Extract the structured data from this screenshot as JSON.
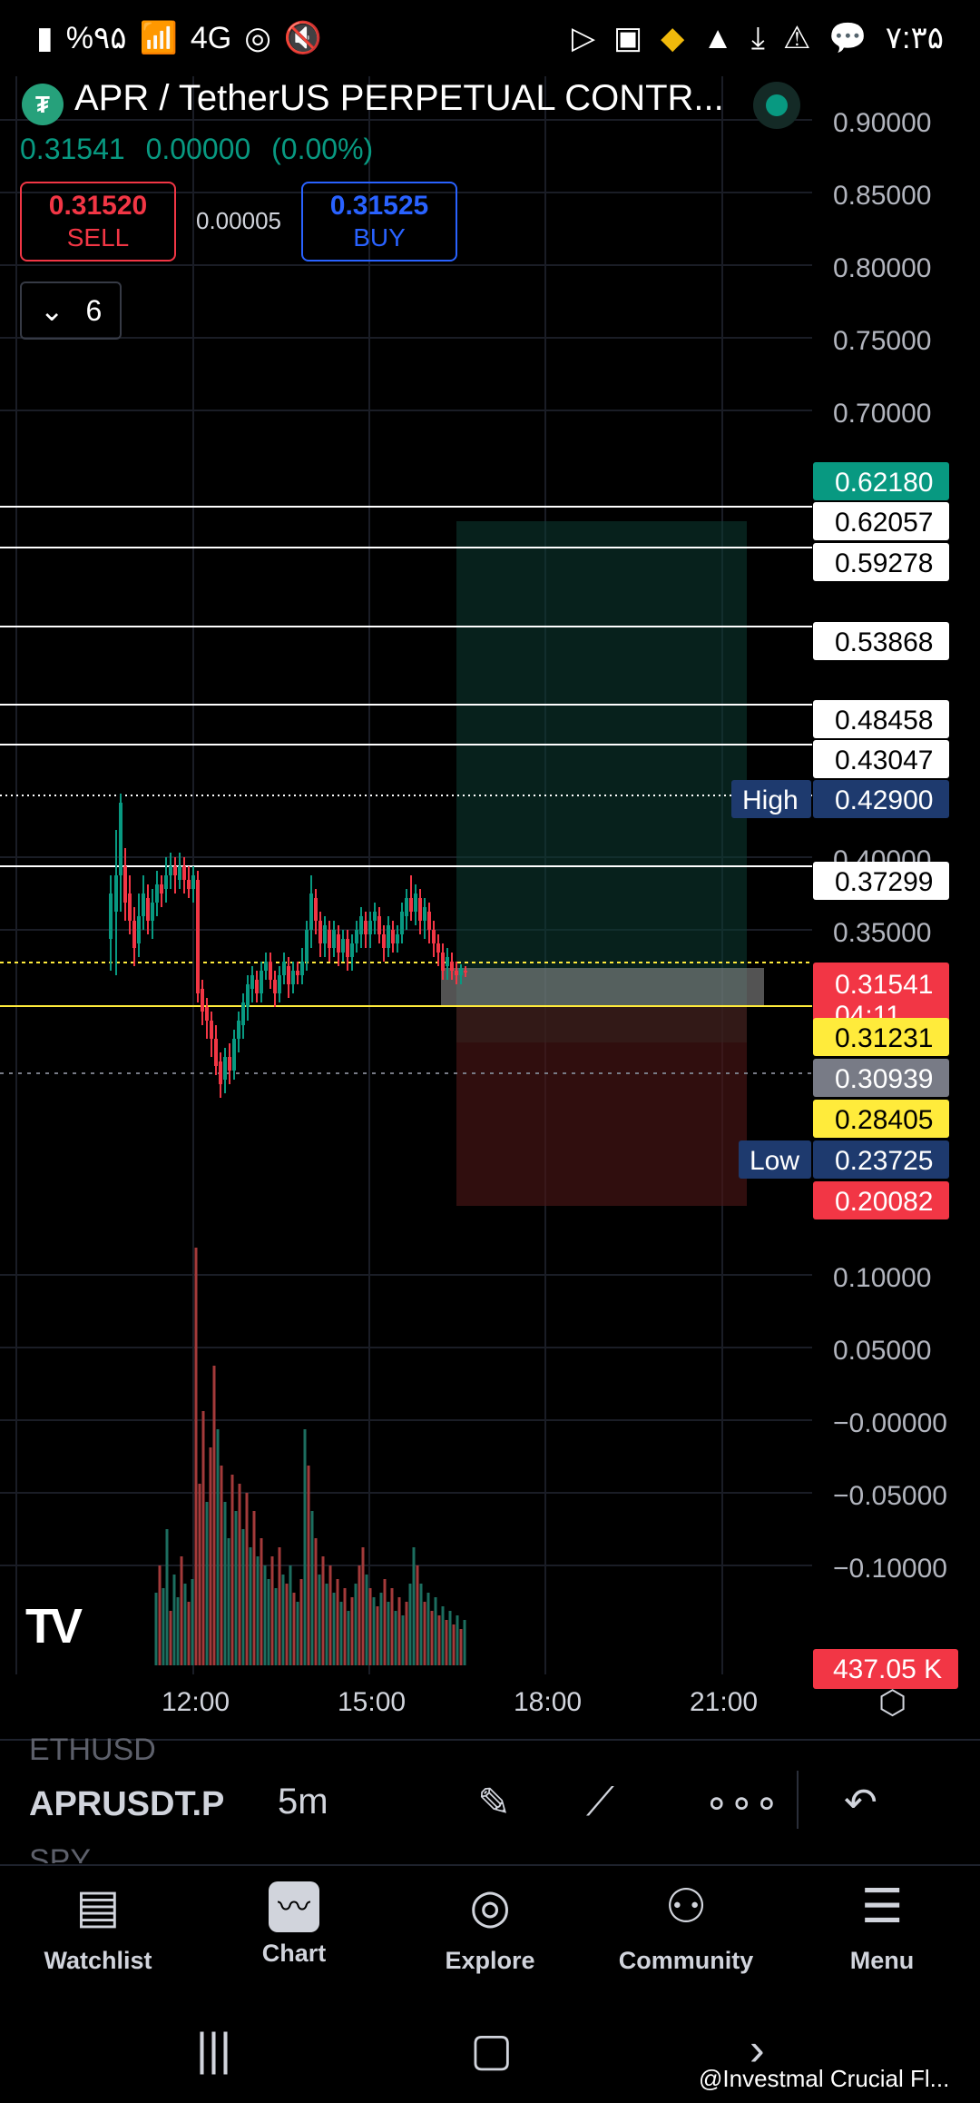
{
  "status_bar": {
    "battery": "%۹۵",
    "signal": "4G",
    "time": "۷:۳۵"
  },
  "header": {
    "title": "APR / TetherUS PERPETUAL CONTR...",
    "last_price": "0.31541",
    "change": "0.00000",
    "change_pct": "(0.00%)",
    "sell_price": "0.31520",
    "sell_label": "SELL",
    "spread": "0.00005",
    "buy_price": "0.31525",
    "buy_label": "BUY",
    "indicator_count": "6"
  },
  "colors": {
    "up": "#089981",
    "down": "#f23645",
    "accent": "#2962ff",
    "high_low": "#1e3a6e",
    "yellow": "#ffeb3b"
  },
  "chart_data": {
    "type": "candlestick",
    "symbol": "APRUSDT.P",
    "interval": "5m",
    "x_ticks": [
      "12:00",
      "15:00",
      "18:00",
      "21:00"
    ],
    "y_ticks": [
      "0.90000",
      "0.85000",
      "0.80000",
      "0.75000",
      "0.70000",
      "0.40000",
      "0.35000",
      "0.10000",
      "0.05000",
      "−0.00000",
      "−0.05000",
      "−0.10000"
    ],
    "price_labels": [
      {
        "value": "0.62180",
        "style": "green"
      },
      {
        "value": "0.62057",
        "style": "white"
      },
      {
        "value": "0.59278",
        "style": "white"
      },
      {
        "value": "0.53868",
        "style": "white"
      },
      {
        "value": "0.48458",
        "style": "white"
      },
      {
        "value": "0.43047",
        "style": "white"
      },
      {
        "value": "0.42900",
        "style": "navy",
        "tag": "High"
      },
      {
        "value": "0.37299",
        "style": "white"
      },
      {
        "value": "0.31541",
        "style": "red",
        "sub": "04:11"
      },
      {
        "value": "0.31231",
        "style": "yellow"
      },
      {
        "value": "0.30939",
        "style": "gray"
      },
      {
        "value": "0.28405",
        "style": "yellow"
      },
      {
        "value": "0.23725",
        "style": "navy",
        "tag": "Low"
      },
      {
        "value": "0.20082",
        "style": "red"
      }
    ],
    "volume_label": "437.05 K",
    "long_position": {
      "entry": 0.31541,
      "target": 0.62057,
      "stop": 0.23725
    }
  },
  "toolbar": {
    "symbol_prev": "ETHUSD",
    "symbol_current": "APRUSDT.P",
    "symbol_next": "SPY",
    "timeframe": "5m"
  },
  "nav": {
    "watchlist": "Watchlist",
    "chart": "Chart",
    "explore": "Explore",
    "community": "Community",
    "menu": "Menu"
  },
  "watermark": "@Investmal Crucial Fl..."
}
